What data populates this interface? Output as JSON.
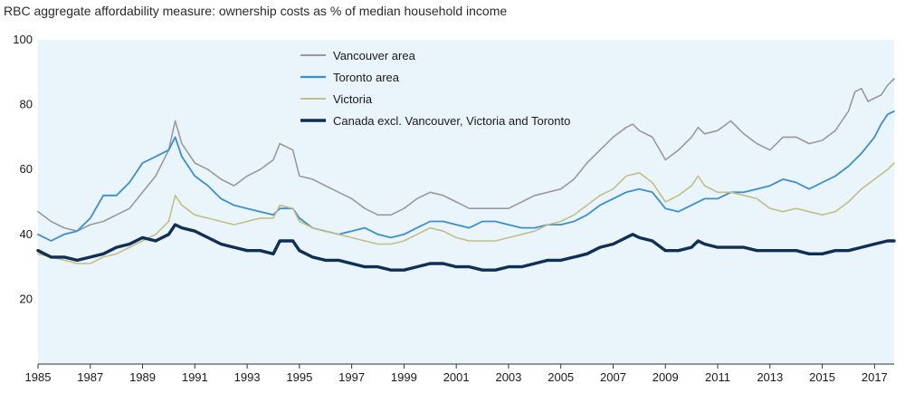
{
  "chart_data": {
    "type": "line",
    "title": "RBC aggregate affordability measure: ownership costs as % of median household income",
    "xlabel": "",
    "ylabel": "",
    "xlim": [
      1985,
      2017.75
    ],
    "ylim": [
      0,
      100
    ],
    "yticks": [
      20,
      40,
      60,
      80,
      100
    ],
    "xticks": [
      1985,
      1987,
      1989,
      1991,
      1993,
      1995,
      1997,
      1999,
      2001,
      2003,
      2005,
      2007,
      2009,
      2011,
      2013,
      2015,
      2017
    ],
    "grid": false,
    "legend_position": "top-center",
    "plot_background": "#eaf4fb",
    "series": [
      {
        "name": "Vancouver area",
        "color": "#9a9a9a",
        "width": 1.6,
        "points": [
          [
            1985,
            47
          ],
          [
            1985.5,
            44
          ],
          [
            1986,
            42
          ],
          [
            1986.5,
            41
          ],
          [
            1987,
            43
          ],
          [
            1987.5,
            44
          ],
          [
            1988,
            46
          ],
          [
            1988.5,
            48
          ],
          [
            1989,
            53
          ],
          [
            1989.5,
            58
          ],
          [
            1990,
            66
          ],
          [
            1990.25,
            75
          ],
          [
            1990.5,
            68
          ],
          [
            1991,
            62
          ],
          [
            1991.5,
            60
          ],
          [
            1992,
            57
          ],
          [
            1992.5,
            55
          ],
          [
            1993,
            58
          ],
          [
            1993.5,
            60
          ],
          [
            1994,
            63
          ],
          [
            1994.25,
            68
          ],
          [
            1994.75,
            66
          ],
          [
            1995,
            58
          ],
          [
            1995.5,
            57
          ],
          [
            1996,
            55
          ],
          [
            1996.5,
            53
          ],
          [
            1997,
            51
          ],
          [
            1997.5,
            48
          ],
          [
            1998,
            46
          ],
          [
            1998.5,
            46
          ],
          [
            1999,
            48
          ],
          [
            1999.5,
            51
          ],
          [
            2000,
            53
          ],
          [
            2000.5,
            52
          ],
          [
            2001,
            50
          ],
          [
            2001.5,
            48
          ],
          [
            2002,
            48
          ],
          [
            2002.5,
            48
          ],
          [
            2003,
            48
          ],
          [
            2003.5,
            50
          ],
          [
            2004,
            52
          ],
          [
            2004.5,
            53
          ],
          [
            2005,
            54
          ],
          [
            2005.5,
            57
          ],
          [
            2006,
            62
          ],
          [
            2006.5,
            66
          ],
          [
            2007,
            70
          ],
          [
            2007.5,
            73
          ],
          [
            2007.75,
            74
          ],
          [
            2008,
            72
          ],
          [
            2008.5,
            70
          ],
          [
            2009,
            63
          ],
          [
            2009.5,
            66
          ],
          [
            2010,
            70
          ],
          [
            2010.25,
            73
          ],
          [
            2010.5,
            71
          ],
          [
            2011,
            72
          ],
          [
            2011.5,
            75
          ],
          [
            2012,
            71
          ],
          [
            2012.5,
            68
          ],
          [
            2013,
            66
          ],
          [
            2013.5,
            70
          ],
          [
            2014,
            70
          ],
          [
            2014.5,
            68
          ],
          [
            2015,
            69
          ],
          [
            2015.5,
            72
          ],
          [
            2016,
            78
          ],
          [
            2016.25,
            84
          ],
          [
            2016.5,
            85
          ],
          [
            2016.75,
            81
          ],
          [
            2017,
            82
          ],
          [
            2017.25,
            83
          ],
          [
            2017.5,
            86
          ],
          [
            2017.75,
            88
          ]
        ]
      },
      {
        "name": "Toronto area",
        "color": "#3a8fd4",
        "width": 1.8,
        "points": [
          [
            1985,
            40
          ],
          [
            1985.5,
            38
          ],
          [
            1986,
            40
          ],
          [
            1986.5,
            41
          ],
          [
            1987,
            45
          ],
          [
            1987.5,
            52
          ],
          [
            1988,
            52
          ],
          [
            1988.5,
            56
          ],
          [
            1989,
            62
          ],
          [
            1989.5,
            64
          ],
          [
            1990,
            66
          ],
          [
            1990.25,
            70
          ],
          [
            1990.5,
            64
          ],
          [
            1991,
            58
          ],
          [
            1991.5,
            55
          ],
          [
            1992,
            51
          ],
          [
            1992.5,
            49
          ],
          [
            1993,
            48
          ],
          [
            1993.5,
            47
          ],
          [
            1994,
            46
          ],
          [
            1994.25,
            48
          ],
          [
            1994.75,
            48
          ],
          [
            1995,
            45
          ],
          [
            1995.5,
            42
          ],
          [
            1996,
            41
          ],
          [
            1996.5,
            40
          ],
          [
            1997,
            41
          ],
          [
            1997.5,
            42
          ],
          [
            1998,
            40
          ],
          [
            1998.5,
            39
          ],
          [
            1999,
            40
          ],
          [
            1999.5,
            42
          ],
          [
            2000,
            44
          ],
          [
            2000.5,
            44
          ],
          [
            2001,
            43
          ],
          [
            2001.5,
            42
          ],
          [
            2002,
            44
          ],
          [
            2002.5,
            44
          ],
          [
            2003,
            43
          ],
          [
            2003.5,
            42
          ],
          [
            2004,
            42
          ],
          [
            2004.5,
            43
          ],
          [
            2005,
            43
          ],
          [
            2005.5,
            44
          ],
          [
            2006,
            46
          ],
          [
            2006.5,
            49
          ],
          [
            2007,
            51
          ],
          [
            2007.5,
            53
          ],
          [
            2008,
            54
          ],
          [
            2008.5,
            53
          ],
          [
            2009,
            48
          ],
          [
            2009.5,
            47
          ],
          [
            2010,
            49
          ],
          [
            2010.5,
            51
          ],
          [
            2011,
            51
          ],
          [
            2011.5,
            53
          ],
          [
            2012,
            53
          ],
          [
            2012.5,
            54
          ],
          [
            2013,
            55
          ],
          [
            2013.5,
            57
          ],
          [
            2014,
            56
          ],
          [
            2014.5,
            54
          ],
          [
            2015,
            56
          ],
          [
            2015.5,
            58
          ],
          [
            2016,
            61
          ],
          [
            2016.5,
            65
          ],
          [
            2017,
            70
          ],
          [
            2017.25,
            74
          ],
          [
            2017.5,
            77
          ],
          [
            2017.75,
            78
          ]
        ]
      },
      {
        "name": "Victoria",
        "color": "#c4bf84",
        "width": 1.6,
        "points": [
          [
            1985,
            34
          ],
          [
            1985.5,
            33
          ],
          [
            1986,
            32
          ],
          [
            1986.5,
            31
          ],
          [
            1987,
            31
          ],
          [
            1987.5,
            33
          ],
          [
            1988,
            34
          ],
          [
            1988.5,
            36
          ],
          [
            1989,
            38
          ],
          [
            1989.5,
            40
          ],
          [
            1990,
            44
          ],
          [
            1990.25,
            52
          ],
          [
            1990.5,
            49
          ],
          [
            1991,
            46
          ],
          [
            1991.5,
            45
          ],
          [
            1992,
            44
          ],
          [
            1992.5,
            43
          ],
          [
            1993,
            44
          ],
          [
            1993.5,
            45
          ],
          [
            1994,
            45
          ],
          [
            1994.25,
            49
          ],
          [
            1994.75,
            48
          ],
          [
            1995,
            44
          ],
          [
            1995.5,
            42
          ],
          [
            1996,
            41
          ],
          [
            1996.5,
            40
          ],
          [
            1997,
            39
          ],
          [
            1997.5,
            38
          ],
          [
            1998,
            37
          ],
          [
            1998.5,
            37
          ],
          [
            1999,
            38
          ],
          [
            1999.5,
            40
          ],
          [
            2000,
            42
          ],
          [
            2000.5,
            41
          ],
          [
            2001,
            39
          ],
          [
            2001.5,
            38
          ],
          [
            2002,
            38
          ],
          [
            2002.5,
            38
          ],
          [
            2003,
            39
          ],
          [
            2003.5,
            40
          ],
          [
            2004,
            41
          ],
          [
            2004.5,
            43
          ],
          [
            2005,
            44
          ],
          [
            2005.5,
            46
          ],
          [
            2006,
            49
          ],
          [
            2006.5,
            52
          ],
          [
            2007,
            54
          ],
          [
            2007.5,
            58
          ],
          [
            2008,
            59
          ],
          [
            2008.5,
            56
          ],
          [
            2009,
            50
          ],
          [
            2009.5,
            52
          ],
          [
            2010,
            55
          ],
          [
            2010.25,
            58
          ],
          [
            2010.5,
            55
          ],
          [
            2011,
            53
          ],
          [
            2011.5,
            53
          ],
          [
            2012,
            52
          ],
          [
            2012.5,
            51
          ],
          [
            2013,
            48
          ],
          [
            2013.5,
            47
          ],
          [
            2014,
            48
          ],
          [
            2014.5,
            47
          ],
          [
            2015,
            46
          ],
          [
            2015.5,
            47
          ],
          [
            2016,
            50
          ],
          [
            2016.5,
            54
          ],
          [
            2017,
            57
          ],
          [
            2017.5,
            60
          ],
          [
            2017.75,
            62
          ]
        ]
      },
      {
        "name": "Canada excl. Vancouver, Victoria and Toronto",
        "color": "#0f2f57",
        "width": 3.4,
        "points": [
          [
            1985,
            35
          ],
          [
            1985.5,
            33
          ],
          [
            1986,
            33
          ],
          [
            1986.5,
            32
          ],
          [
            1987,
            33
          ],
          [
            1987.5,
            34
          ],
          [
            1988,
            36
          ],
          [
            1988.5,
            37
          ],
          [
            1989,
            39
          ],
          [
            1989.5,
            38
          ],
          [
            1990,
            40
          ],
          [
            1990.25,
            43
          ],
          [
            1990.5,
            42
          ],
          [
            1991,
            41
          ],
          [
            1991.5,
            39
          ],
          [
            1992,
            37
          ],
          [
            1992.5,
            36
          ],
          [
            1993,
            35
          ],
          [
            1993.5,
            35
          ],
          [
            1994,
            34
          ],
          [
            1994.25,
            38
          ],
          [
            1994.75,
            38
          ],
          [
            1995,
            35
          ],
          [
            1995.5,
            33
          ],
          [
            1996,
            32
          ],
          [
            1996.5,
            32
          ],
          [
            1997,
            31
          ],
          [
            1997.5,
            30
          ],
          [
            1998,
            30
          ],
          [
            1998.5,
            29
          ],
          [
            1999,
            29
          ],
          [
            1999.5,
            30
          ],
          [
            2000,
            31
          ],
          [
            2000.5,
            31
          ],
          [
            2001,
            30
          ],
          [
            2001.5,
            30
          ],
          [
            2002,
            29
          ],
          [
            2002.5,
            29
          ],
          [
            2003,
            30
          ],
          [
            2003.5,
            30
          ],
          [
            2004,
            31
          ],
          [
            2004.5,
            32
          ],
          [
            2005,
            32
          ],
          [
            2005.5,
            33
          ],
          [
            2006,
            34
          ],
          [
            2006.5,
            36
          ],
          [
            2007,
            37
          ],
          [
            2007.5,
            39
          ],
          [
            2007.75,
            40
          ],
          [
            2008,
            39
          ],
          [
            2008.5,
            38
          ],
          [
            2009,
            35
          ],
          [
            2009.5,
            35
          ],
          [
            2010,
            36
          ],
          [
            2010.25,
            38
          ],
          [
            2010.5,
            37
          ],
          [
            2011,
            36
          ],
          [
            2011.5,
            36
          ],
          [
            2012,
            36
          ],
          [
            2012.5,
            35
          ],
          [
            2013,
            35
          ],
          [
            2013.5,
            35
          ],
          [
            2014,
            35
          ],
          [
            2014.5,
            34
          ],
          [
            2015,
            34
          ],
          [
            2015.5,
            35
          ],
          [
            2016,
            35
          ],
          [
            2016.5,
            36
          ],
          [
            2017,
            37
          ],
          [
            2017.5,
            38
          ],
          [
            2017.75,
            38
          ]
        ]
      }
    ]
  }
}
